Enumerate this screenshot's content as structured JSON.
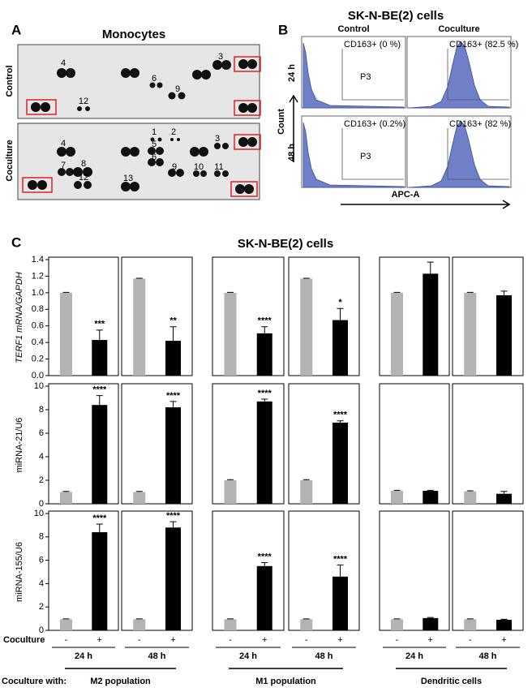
{
  "panel_a": {
    "letter": "A",
    "title": "Monocytes",
    "rows": [
      "Control",
      "Coculture"
    ],
    "control_spots": [
      "4",
      "3",
      "6",
      "9",
      "12"
    ],
    "coculture_spots": [
      "4",
      "1",
      "2",
      "3",
      "5",
      "6",
      "7",
      "8",
      "12",
      "9",
      "10",
      "11",
      "13"
    ]
  },
  "panel_b": {
    "letter": "B",
    "title": "SK-N-BE(2) cells",
    "columns": [
      "Control",
      "Coculture"
    ],
    "rows": [
      "24 h",
      "48 h"
    ],
    "y_label": "Count",
    "x_label": "APC-A",
    "gates": [
      "CD163+ (0 %)",
      "CD163+ (82.5 %)",
      "CD163+ (0.2%)",
      "CD163+ (82 %)"
    ],
    "gate_name": "P3"
  },
  "panel_c": {
    "letter": "C",
    "title": "SK-N-BE(2) cells",
    "row_label": "Coculture",
    "signs": [
      "-",
      "+"
    ],
    "times": [
      "24 h",
      "48 h"
    ],
    "groups_label": "Coculture with:",
    "groups": [
      "M2 population",
      "M1 population",
      "Dendritic cells"
    ]
  },
  "chart_data": [
    {
      "type": "bar",
      "y_label": "TERF1 mRNA/GAPDH",
      "ylim": [
        0,
        1.4
      ],
      "yticks": [
        {
          "value": 0,
          "label": "0.0"
        },
        0.2,
        0.4,
        0.6,
        0.8,
        {
          "value": 1,
          "label": "1.0"
        },
        1.2,
        1.4
      ],
      "colors": [
        "#b3b3b3",
        "#000000"
      ],
      "values": [
        1.0,
        0.43,
        1.17,
        0.42,
        1.0,
        0.51,
        1.17,
        0.67,
        1.0,
        1.23,
        1.0,
        0.97
      ],
      "errors": [
        0.005,
        0.12,
        0.005,
        0.17,
        0.005,
        0.08,
        0.005,
        0.14,
        0.005,
        0.14,
        0.005,
        0.05
      ],
      "annotations": [
        null,
        "***",
        null,
        "**",
        null,
        "****",
        null,
        "*",
        null,
        null,
        null,
        null
      ]
    },
    {
      "type": "bar",
      "y_label": "miRNA-21/U6",
      "ylim": [
        0,
        10
      ],
      "yticks": [
        0,
        2,
        4,
        6,
        8,
        10
      ],
      "colors": [
        "#b3b3b3",
        "#000000"
      ],
      "values": [
        1.0,
        8.4,
        1.0,
        8.2,
        2.0,
        8.7,
        2.0,
        6.9,
        1.1,
        1.1,
        1.05,
        0.85
      ],
      "errors": [
        0.05,
        0.8,
        0.05,
        0.5,
        0.05,
        0.2,
        0.05,
        0.15,
        0.05,
        0.05,
        0.05,
        0.2
      ],
      "annotations": [
        null,
        "****",
        null,
        "****",
        null,
        "****",
        null,
        "****",
        null,
        null,
        null,
        null
      ]
    },
    {
      "type": "bar",
      "y_label": "miRNA-155/U6",
      "ylim": [
        0,
        10
      ],
      "yticks": [
        0,
        2,
        4,
        6,
        8,
        10
      ],
      "colors": [
        "#b3b3b3",
        "#000000"
      ],
      "values": [
        0.95,
        8.4,
        0.95,
        8.8,
        0.95,
        5.5,
        0.95,
        4.6,
        0.95,
        1.05,
        0.95,
        0.9
      ],
      "errors": [
        0.03,
        0.7,
        0.03,
        0.5,
        0.03,
        0.3,
        0.03,
        1.0,
        0.03,
        0.05,
        0.03,
        0.05
      ],
      "annotations": [
        null,
        "****",
        null,
        "****",
        null,
        "****",
        null,
        "****",
        null,
        null,
        null,
        null
      ]
    }
  ]
}
